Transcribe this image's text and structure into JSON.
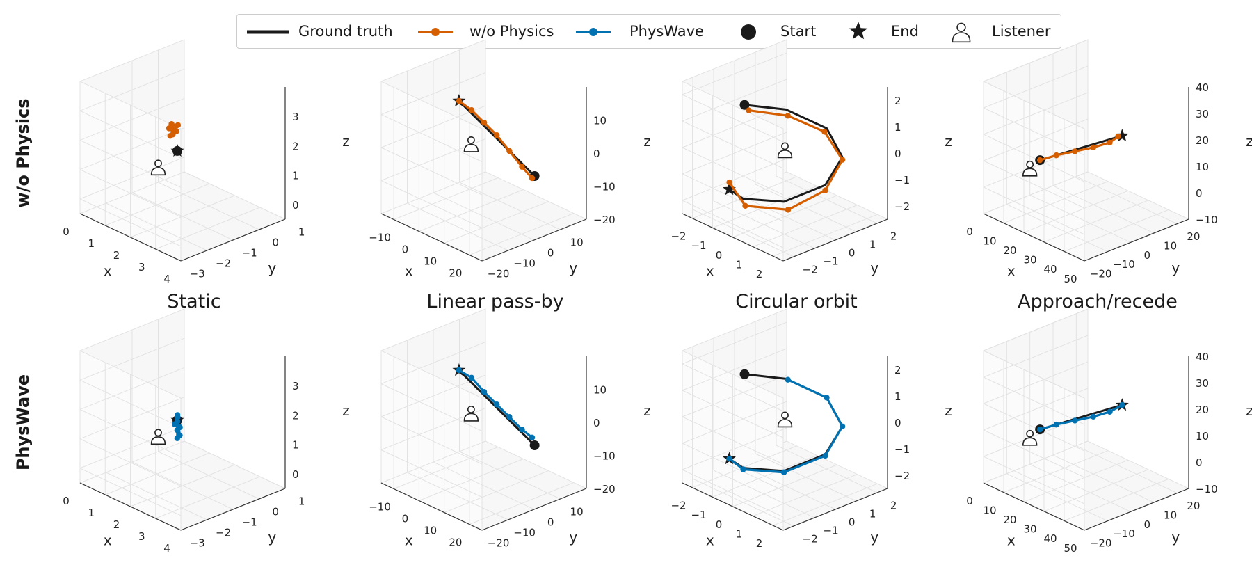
{
  "legend": {
    "ground_truth": "Ground truth",
    "without_physics": "w/o Physics",
    "physwave": "PhysWave",
    "start": "Start",
    "end": "End",
    "listener": "Listener"
  },
  "row_labels": [
    "w/o Physics",
    "PhysWave"
  ],
  "column_titles": [
    "Static",
    "Linear pass-by",
    "Circular orbit",
    "Approach/recede"
  ],
  "colors": {
    "ground_truth": "#1a1a1a",
    "without_physics": "#d55e00",
    "physwave": "#0072b2",
    "grid": "#e3e3e3",
    "pane": "#f7f7f7"
  },
  "chart_data": [
    {
      "type": "line3d",
      "row": "w/o Physics",
      "title": "Static",
      "xlabel": "x",
      "ylabel": "y",
      "zlabel": "z",
      "xlim": [
        0,
        4
      ],
      "ylim": [
        -3,
        1
      ],
      "zlim": [
        -0.5,
        4
      ],
      "xticks": [
        0,
        1,
        2,
        3,
        4
      ],
      "yticks": [
        -3,
        -2,
        -1,
        0,
        1
      ],
      "zticks": [
        0,
        1,
        2,
        3
      ],
      "listener": [
        0,
        0,
        0
      ],
      "series": [
        {
          "name": "Ground truth",
          "points": [
            [
              2,
              -1.2,
              1.8
            ]
          ],
          "start": [
            2,
            -1.2,
            1.8
          ],
          "end": [
            2,
            -1.2,
            1.8
          ]
        },
        {
          "name": "w/o Physics",
          "points": [
            [
              1.2,
              -0.6,
              2.0
            ],
            [
              1.25,
              -0.55,
              2.1
            ],
            [
              1.3,
              -0.7,
              1.9
            ],
            [
              1.2,
              -0.65,
              2.2
            ],
            [
              1.35,
              -0.6,
              2.0
            ],
            [
              1.25,
              -0.75,
              1.85
            ],
            [
              1.3,
              -0.5,
              2.15
            ],
            [
              1.15,
              -0.7,
              2.05
            ]
          ]
        }
      ]
    },
    {
      "type": "line3d",
      "row": "w/o Physics",
      "title": "Linear pass-by",
      "xlabel": "x",
      "ylabel": "y",
      "zlabel": "z",
      "xlim": [
        -15,
        25
      ],
      "ylim": [
        -20,
        20
      ],
      "zlim": [
        -20,
        20
      ],
      "xticks": [
        -10,
        0,
        10,
        20
      ],
      "yticks": [
        -20,
        -10,
        0,
        10
      ],
      "zticks": [
        -20,
        -10,
        0,
        10
      ],
      "listener": [
        0,
        0,
        0
      ],
      "series": [
        {
          "name": "Ground truth",
          "points": [
            [
              -10,
              5,
              8
            ],
            [
              20,
              5,
              -4
            ]
          ],
          "start": [
            20,
            5,
            -4
          ],
          "end": [
            -10,
            5,
            8
          ]
        },
        {
          "name": "w/o Physics",
          "points": [
            [
              -10,
              5,
              8
            ],
            [
              -5,
              5,
              7
            ],
            [
              0,
              5,
              5
            ],
            [
              5,
              5,
              3
            ],
            [
              10,
              5,
              0
            ],
            [
              15,
              5,
              -3
            ],
            [
              19,
              5,
              -5
            ]
          ]
        }
      ]
    },
    {
      "type": "line3d",
      "row": "w/o Physics",
      "title": "Circular orbit",
      "xlabel": "x",
      "ylabel": "y",
      "zlabel": "z",
      "xlim": [
        -2.5,
        2.5
      ],
      "ylim": [
        -2.5,
        2.5
      ],
      "zlim": [
        -2.5,
        2.5
      ],
      "xticks": [
        -2,
        -1,
        0,
        1,
        2
      ],
      "yticks": [
        -2,
        -1,
        0,
        1,
        2
      ],
      "zticks": [
        -2,
        -1,
        0,
        1,
        2
      ],
      "listener": [
        0,
        0,
        0
      ],
      "series": [
        {
          "name": "Ground truth",
          "points": [
            [
              -2,
              0,
              1
            ],
            [
              -1.4,
              1.4,
              0.6
            ],
            [
              0,
              2,
              0.2
            ],
            [
              1.4,
              1.4,
              -0.2
            ],
            [
              2,
              0,
              -0.6
            ],
            [
              1.4,
              -1.4,
              -1
            ],
            [
              0,
              -2,
              -1.2
            ],
            [
              -1,
              -1.7,
              -1.3
            ]
          ],
          "start": [
            -2,
            0,
            1
          ],
          "end": [
            -1,
            -1.7,
            -1.3
          ]
        },
        {
          "name": "w/o Physics",
          "points": [
            [
              -1.9,
              0.1,
              0.8
            ],
            [
              -1.3,
              1.4,
              0.4
            ],
            [
              0,
              1.9,
              0.1
            ],
            [
              1.4,
              1.4,
              -0.3
            ],
            [
              2,
              0,
              -0.8
            ],
            [
              1.5,
              -1.3,
              -1.3
            ],
            [
              0,
              -1.9,
              -1.5
            ],
            [
              -1.1,
              -1.6,
              -1.1
            ]
          ]
        }
      ]
    },
    {
      "type": "line3d",
      "row": "w/o Physics",
      "title": "Approach/recede",
      "xlabel": "x",
      "ylabel": "y",
      "zlabel": "z",
      "xlim": [
        0,
        50
      ],
      "ylim": [
        -20,
        25
      ],
      "zlim": [
        -10,
        40
      ],
      "xticks": [
        0,
        10,
        20,
        30,
        40,
        50
      ],
      "yticks": [
        -20,
        -10,
        0,
        10,
        20
      ],
      "zticks": [
        -10,
        0,
        10,
        20,
        30,
        40
      ],
      "listener": [
        0,
        0,
        0
      ],
      "series": [
        {
          "name": "Ground truth",
          "points": [
            [
              5,
              0,
              5
            ],
            [
              40,
              5,
              25
            ]
          ],
          "start": [
            5,
            0,
            5
          ],
          "end": [
            40,
            5,
            25
          ]
        },
        {
          "name": "w/o Physics",
          "points": [
            [
              5,
              0,
              5
            ],
            [
              12,
              1,
              9
            ],
            [
              20,
              2,
              13
            ],
            [
              28,
              3,
              17
            ],
            [
              35,
              4,
              21
            ],
            [
              38,
              5,
              24
            ]
          ]
        }
      ]
    },
    {
      "type": "line3d",
      "row": "PhysWave",
      "title": "Static",
      "xlabel": "x",
      "ylabel": "y",
      "zlabel": "z",
      "xlim": [
        0,
        4
      ],
      "ylim": [
        -3,
        1
      ],
      "zlim": [
        -0.5,
        4
      ],
      "xticks": [
        0,
        1,
        2,
        3,
        4
      ],
      "yticks": [
        -3,
        -2,
        -1,
        0,
        1
      ],
      "zticks": [
        0,
        1,
        2,
        3
      ],
      "listener": [
        0,
        0,
        0
      ],
      "series": [
        {
          "name": "Ground truth",
          "points": [
            [
              2,
              -1.2,
              1.8
            ]
          ],
          "start": [
            2,
            -1.2,
            1.8
          ],
          "end": [
            2,
            -1.2,
            1.8
          ]
        },
        {
          "name": "PhysWave",
          "points": [
            [
              1.9,
              -1.1,
              1.9
            ],
            [
              2.0,
              -1.3,
              1.7
            ],
            [
              2.1,
              -1.2,
              1.6
            ],
            [
              2.05,
              -1.25,
              1.5
            ],
            [
              2.2,
              -1.3,
              1.4
            ],
            [
              1.95,
              -1.15,
              1.85
            ],
            [
              2.15,
              -1.35,
              1.3
            ],
            [
              2.0,
              -1.2,
              1.75
            ]
          ]
        }
      ]
    },
    {
      "type": "line3d",
      "row": "PhysWave",
      "title": "Linear pass-by",
      "xlabel": "x",
      "ylabel": "y",
      "zlabel": "z",
      "xlim": [
        -15,
        25
      ],
      "ylim": [
        -20,
        20
      ],
      "zlim": [
        -20,
        20
      ],
      "xticks": [
        -10,
        0,
        10,
        20
      ],
      "yticks": [
        -20,
        -10,
        0,
        10
      ],
      "zticks": [
        -20,
        -10,
        0,
        10
      ],
      "listener": [
        0,
        0,
        0
      ],
      "series": [
        {
          "name": "Ground truth",
          "points": [
            [
              -10,
              5,
              8
            ],
            [
              20,
              5,
              -4
            ]
          ],
          "start": [
            20,
            5,
            -4
          ],
          "end": [
            -10,
            5,
            8
          ]
        },
        {
          "name": "PhysWave",
          "points": [
            [
              -10,
              5,
              8
            ],
            [
              -5,
              5,
              7.5
            ],
            [
              0,
              5,
              5
            ],
            [
              5,
              5,
              3
            ],
            [
              10,
              5,
              1
            ],
            [
              15,
              5,
              -1
            ],
            [
              19,
              5,
              -2
            ]
          ]
        }
      ]
    },
    {
      "type": "line3d",
      "row": "PhysWave",
      "title": "Circular orbit",
      "xlabel": "x",
      "ylabel": "y",
      "zlabel": "z",
      "xlim": [
        -2.5,
        2.5
      ],
      "ylim": [
        -2.5,
        2.5
      ],
      "zlim": [
        -2.5,
        2.5
      ],
      "xticks": [
        -2,
        -1,
        0,
        1,
        2
      ],
      "yticks": [
        -2,
        -1,
        0,
        1,
        2
      ],
      "zticks": [
        -2,
        -1,
        0,
        1,
        2
      ],
      "listener": [
        0,
        0,
        0
      ],
      "series": [
        {
          "name": "Ground truth",
          "points": [
            [
              -2,
              0,
              1
            ],
            [
              -1.4,
              1.4,
              0.6
            ],
            [
              0,
              2,
              0.2
            ],
            [
              1.4,
              1.4,
              -0.2
            ],
            [
              2,
              0,
              -0.6
            ],
            [
              1.4,
              -1.4,
              -1
            ],
            [
              0,
              -2,
              -1.2
            ],
            [
              -1,
              -1.7,
              -1.3
            ]
          ],
          "start": [
            -2,
            0,
            1
          ],
          "end": [
            -1,
            -1.7,
            -1.3
          ]
        },
        {
          "name": "PhysWave",
          "points": [
            [
              -1.3,
              1.4,
              0.6
            ],
            [
              0,
              2,
              0.2
            ],
            [
              1.4,
              1.4,
              -0.2
            ],
            [
              2,
              0,
              -0.65
            ],
            [
              1.4,
              -1.4,
              -1.05
            ],
            [
              0,
              -2,
              -1.25
            ],
            [
              -1,
              -1.7,
              -1.3
            ]
          ]
        }
      ]
    },
    {
      "type": "line3d",
      "row": "PhysWave",
      "title": "Approach/recede",
      "xlabel": "x",
      "ylabel": "y",
      "zlabel": "z",
      "xlim": [
        0,
        50
      ],
      "ylim": [
        -20,
        25
      ],
      "zlim": [
        -10,
        40
      ],
      "xticks": [
        0,
        10,
        20,
        30,
        40,
        50
      ],
      "yticks": [
        -20,
        -10,
        0,
        10,
        20
      ],
      "zticks": [
        -10,
        0,
        10,
        20,
        30,
        40
      ],
      "listener": [
        0,
        0,
        0
      ],
      "series": [
        {
          "name": "Ground truth",
          "points": [
            [
              5,
              0,
              5
            ],
            [
              40,
              5,
              25
            ]
          ],
          "start": [
            5,
            0,
            5
          ],
          "end": [
            40,
            5,
            25
          ]
        },
        {
          "name": "PhysWave",
          "points": [
            [
              5,
              0,
              5
            ],
            [
              12,
              1,
              9
            ],
            [
              20,
              2,
              13
            ],
            [
              28,
              3,
              17
            ],
            [
              35,
              4,
              21
            ],
            [
              40,
              5,
              25
            ]
          ]
        }
      ]
    }
  ]
}
